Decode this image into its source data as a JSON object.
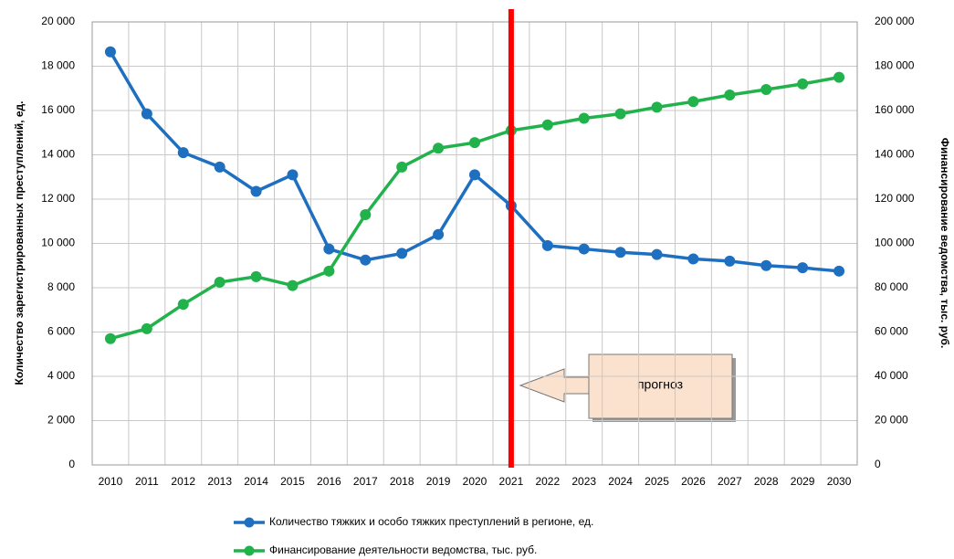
{
  "chart_data": {
    "type": "line",
    "ylabel": "Количество зарегистрированных  преступлений, ед.",
    "y2label": "Финансирование  ведомства,  тыс. руб.",
    "categories": [
      "2010",
      "2011",
      "2012",
      "2013",
      "2014",
      "2015",
      "2016",
      "2017",
      "2018",
      "2019",
      "2020",
      "2021",
      "2022",
      "2023",
      "2024",
      "2025",
      "2026",
      "2027",
      "2028",
      "2029",
      "2030"
    ],
    "series": [
      {
        "name": "Количество тяжких и особо тяжких преступлений в регионе, ед.",
        "color": "#1f6fc0",
        "axis": "y",
        "values": [
          18650,
          15850,
          14100,
          13450,
          12350,
          13100,
          9750,
          9250,
          9550,
          10400,
          13100,
          11700,
          9900,
          9750,
          9600,
          9500,
          9300,
          9200,
          9000,
          8900,
          8750
        ]
      },
      {
        "name": "Финансирование деятельности ведомства, тыс. руб.",
        "color": "#22b24c",
        "axis": "y2",
        "values": [
          57000,
          61500,
          72500,
          82500,
          85000,
          81000,
          87500,
          113000,
          134500,
          143000,
          145500,
          151000,
          153500,
          156500,
          158500,
          161500,
          164000,
          167000,
          169500,
          172000,
          175000
        ]
      }
    ],
    "ylim": [
      0,
      20000
    ],
    "yticks": [
      0,
      {
        "value": 2000,
        "label": "2 000"
      },
      {
        "value": 4000,
        "label": "4 000"
      },
      {
        "value": 6000,
        "label": "6 000"
      },
      {
        "value": 8000,
        "label": "8 000"
      },
      {
        "value": 10000,
        "label": "10 000"
      },
      {
        "value": 12000,
        "label": "12 000"
      },
      {
        "value": 14000,
        "label": "14 000"
      },
      {
        "value": 16000,
        "label": "16 000"
      },
      {
        "value": 18000,
        "label": "18 000"
      },
      {
        "value": 20000,
        "label": "20 000"
      }
    ],
    "y2lim": [
      0,
      200000
    ],
    "y2ticks": [
      0,
      {
        "value": 20000,
        "label": "20 000"
      },
      {
        "value": 40000,
        "label": "40 000"
      },
      {
        "value": 60000,
        "label": "60 000"
      },
      {
        "value": 80000,
        "label": "80 000"
      },
      {
        "value": 100000,
        "label": "100 000"
      },
      {
        "value": 120000,
        "label": "120 000"
      },
      {
        "value": 140000,
        "label": "140 000"
      },
      {
        "value": 160000,
        "label": "160 000"
      },
      {
        "value": 180000,
        "label": "180 000"
      },
      {
        "value": 200000,
        "label": "200 000"
      }
    ],
    "grid": true,
    "marker_line": {
      "category": "2021",
      "color": "#ff0000"
    },
    "annotation": "прогноз",
    "legend": "bottom"
  }
}
